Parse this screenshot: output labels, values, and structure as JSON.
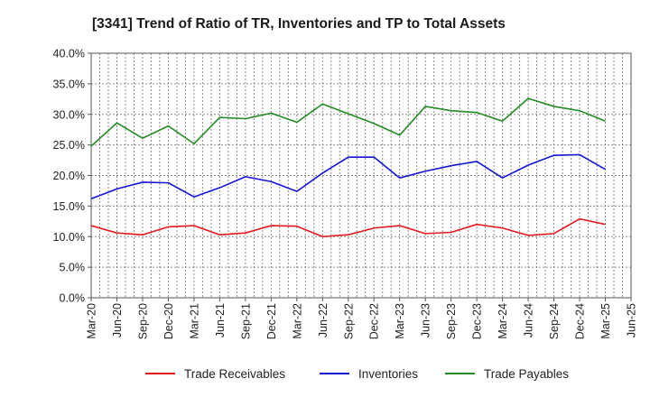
{
  "chart_data": {
    "type": "line",
    "title": "[3341]  Trend of Ratio of TR, Inventories and TP to Total Assets",
    "xlabel": "",
    "ylabel": "",
    "ylim": [
      0,
      40
    ],
    "y_ticks": [
      "0.0%",
      "5.0%",
      "10.0%",
      "15.0%",
      "20.0%",
      "25.0%",
      "30.0%",
      "35.0%",
      "40.0%"
    ],
    "x_ticks": [
      "Mar-20",
      "Jun-20",
      "Sep-20",
      "Dec-20",
      "Mar-21",
      "Jun-21",
      "Sep-21",
      "Dec-21",
      "Mar-22",
      "Jun-22",
      "Sep-22",
      "Dec-22",
      "Mar-23",
      "Jun-23",
      "Sep-23",
      "Dec-23",
      "Mar-24",
      "Jun-24",
      "Sep-24",
      "Dec-24",
      "Mar-25",
      "Jun-25"
    ],
    "x": [
      "Mar-20",
      "Jun-20",
      "Sep-20",
      "Dec-20",
      "Mar-21",
      "Jun-21",
      "Sep-21",
      "Dec-21",
      "Mar-22",
      "Jun-22",
      "Sep-22",
      "Dec-22",
      "Mar-23",
      "Jun-23",
      "Sep-23",
      "Dec-23",
      "Mar-24",
      "Jun-24",
      "Sep-24",
      "Dec-24",
      "Mar-25"
    ],
    "grid": true,
    "legend_position": "bottom",
    "series": [
      {
        "name": "Trade Receivables",
        "color": "#e31a1c",
        "values": [
          11.8,
          10.6,
          10.3,
          11.6,
          11.8,
          10.3,
          10.6,
          11.8,
          11.7,
          10.0,
          10.3,
          11.4,
          11.8,
          10.5,
          10.7,
          12.0,
          11.4,
          10.2,
          10.5,
          12.9,
          12.0
        ]
      },
      {
        "name": "Inventories",
        "color": "#1515d6",
        "values": [
          16.2,
          17.8,
          18.9,
          18.8,
          16.5,
          18.0,
          19.8,
          19.0,
          17.4,
          20.4,
          23.0,
          23.0,
          19.6,
          20.7,
          21.6,
          22.3,
          19.6,
          21.7,
          23.3,
          23.4,
          21.0
        ]
      },
      {
        "name": "Trade Payables",
        "color": "#228b22",
        "values": [
          24.8,
          28.6,
          26.1,
          28.1,
          25.2,
          29.5,
          29.3,
          30.2,
          28.7,
          31.7,
          30.1,
          28.5,
          26.6,
          31.3,
          30.6,
          30.3,
          28.9,
          32.6,
          31.3,
          30.6,
          28.9
        ]
      }
    ]
  }
}
